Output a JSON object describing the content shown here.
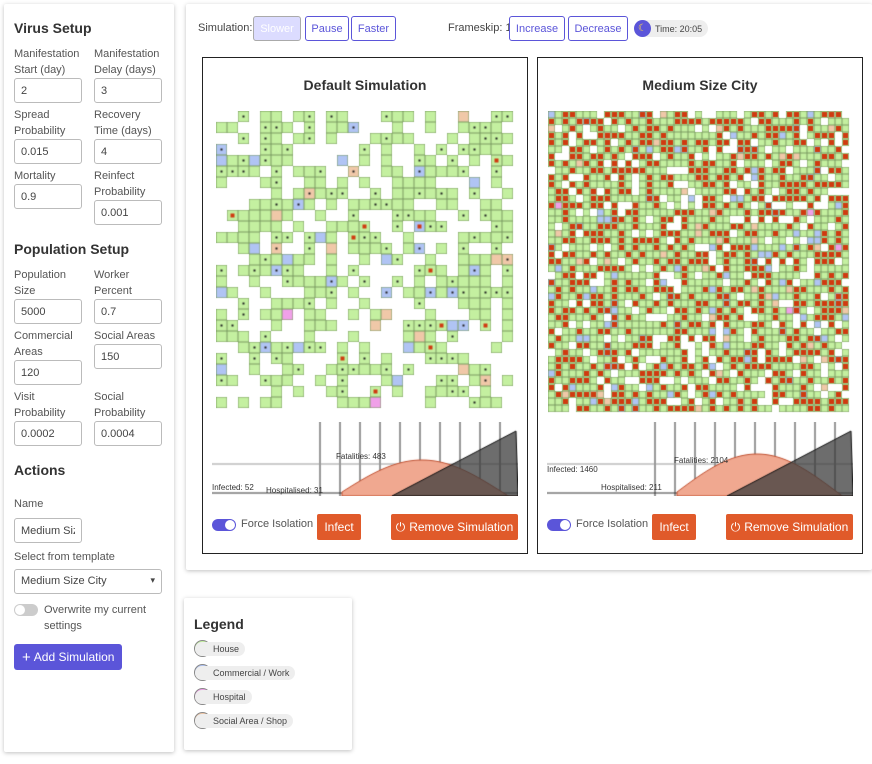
{
  "virus_setup": {
    "title": "Virus Setup",
    "manifestation_start_label": "Manifestation Start (day)",
    "manifestation_start": "2",
    "manifestation_delay_label": "Manifestation Delay (days)",
    "manifestation_delay": "3",
    "spread_probability_label": "Spread Probability",
    "spread_probability": "0.015",
    "recovery_time_label": "Recovery Time (days)",
    "recovery_time": "4",
    "mortality_label": "Mortality",
    "mortality": "0.9",
    "reinfect_label": "Reinfect Probability",
    "reinfect": "0.001"
  },
  "population_setup": {
    "title": "Population Setup",
    "population_size_label": "Population Size",
    "population_size": "5000",
    "worker_percent_label": "Worker Percent",
    "worker_percent": "0.7",
    "commercial_areas_label": "Commercial Areas",
    "commercial_areas": "120",
    "social_areas_label": "Social Areas",
    "social_areas": "150",
    "visit_probability_label": "Visit Probability",
    "visit_probability": "0.0002",
    "social_probability_label": "Social Probability",
    "social_probability": "0.0004"
  },
  "actions": {
    "title": "Actions",
    "name_label": "Name",
    "name_value": "Medium Size City",
    "template_label": "Select from template",
    "template_value": "Medium Size City",
    "overwrite_label": "Overwrite my current settings",
    "overwrite_on": false,
    "add_button": "Add Simulation",
    "add_icon": "+"
  },
  "controls": {
    "simulation_label": "Simulation:",
    "slower": "Slower",
    "pause": "Pause",
    "faster": "Faster",
    "frameskip_label": "Frameskip: 1",
    "increase": "Increase",
    "decrease": "Decrease",
    "time_label": "Time: 20:05",
    "time_icon": "moon-icon"
  },
  "simulations": [
    {
      "title": "Default Simulation",
      "density": 0.55,
      "infected": "Infected: 52",
      "hospitalised": "Hospitalised: 31",
      "fatalities": "Fatalities: 483",
      "force_isolation_label": "Force Isolation",
      "force_isolation_on": true,
      "infect_button": "Infect",
      "remove_button": "Remove Simulation",
      "remove_icon": "power-icon"
    },
    {
      "title": "Medium Size City",
      "density": 0.85,
      "infected": "Infected: 1460",
      "hospitalised": "Hospitalised: 211",
      "fatalities": "Fatalities: 2104",
      "force_isolation_label": "Force Isolation",
      "force_isolation_on": true,
      "infect_button": "Infect",
      "remove_button": "Remove Simulation",
      "remove_icon": "power-icon"
    }
  ],
  "legend": {
    "title": "Legend",
    "items": [
      {
        "label": "House",
        "color": "#c4f0a0"
      },
      {
        "label": "Commercial / Work",
        "color": "#b0c4f4"
      },
      {
        "label": "Hospital",
        "color": "#f0a0e8"
      },
      {
        "label": "Social Area / Shop",
        "color": "#f0c8a8"
      }
    ]
  },
  "colors": {
    "accent": "#5b55d9",
    "danger": "#e05a2a",
    "infected_fill": "#f0a890",
    "fatality_fill": "#555555"
  }
}
